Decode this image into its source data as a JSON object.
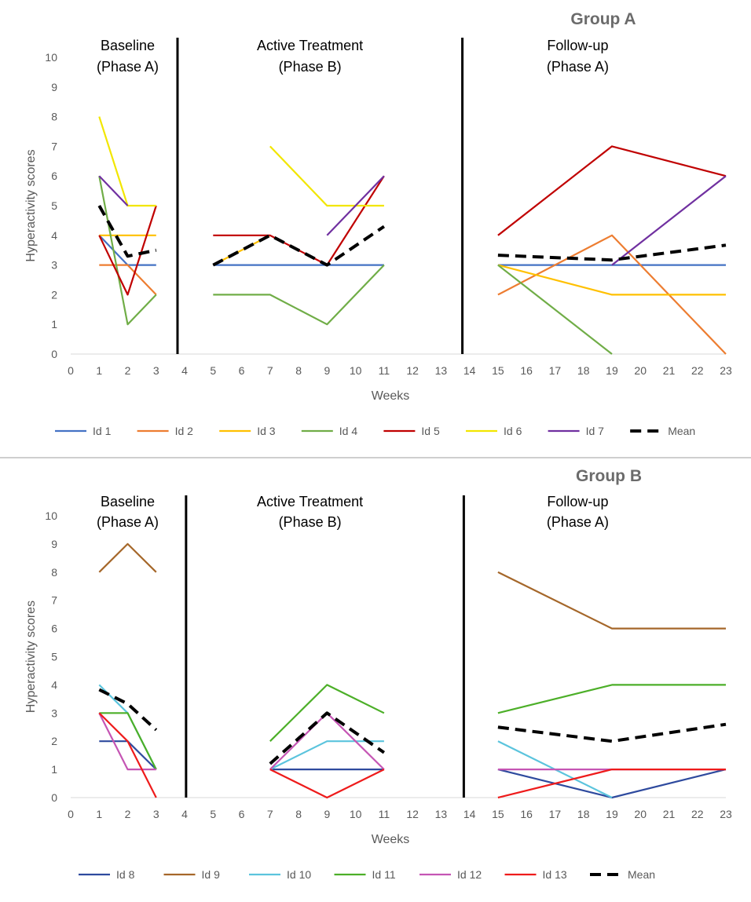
{
  "chart_data": [
    {
      "type": "line",
      "title": "Group A",
      "xlabel": "Weeks",
      "ylabel": "Hyperactivity scores",
      "xlim": [
        0,
        23
      ],
      "ylim": [
        0,
        10
      ],
      "x_ticks": [
        "0",
        "1",
        "2",
        "3",
        "4",
        "5",
        "6",
        "7",
        "8",
        "9",
        "10",
        "11",
        "12",
        "13",
        "14",
        "15",
        "16",
        "17",
        "18",
        "19",
        "20",
        "21",
        "22",
        "23"
      ],
      "y_ticks": [
        "0",
        "1",
        "2",
        "3",
        "4",
        "5",
        "6",
        "7",
        "8",
        "9",
        "10"
      ],
      "phase_dividers": [
        3.75,
        13.75
      ],
      "phases": [
        {
          "line1": "Baseline",
          "line2": "(Phase A)",
          "x": 2
        },
        {
          "line1": "Active Treatment",
          "line2": "(Phase B)",
          "x": 8.4
        },
        {
          "line1": "Follow-up",
          "line2": "(Phase A)",
          "x": 17.8
        }
      ],
      "legend": [
        "Id 1",
        "Id 2",
        "Id 3",
        "Id 4",
        "Id 5",
        "Id 6",
        "Id 7",
        "Mean"
      ],
      "series": [
        {
          "name": "Id 1",
          "color": "#4472c4",
          "dashed": false,
          "segments": [
            [
              [
                1,
                4
              ],
              [
                2,
                3
              ],
              [
                3,
                3
              ]
            ],
            [
              [
                5,
                3
              ],
              [
                7,
                3
              ],
              [
                9,
                3
              ],
              [
                11,
                3
              ]
            ],
            [
              [
                15,
                3
              ],
              [
                19,
                3
              ],
              [
                23,
                3
              ]
            ]
          ]
        },
        {
          "name": "Id 2",
          "color": "#ed7d31",
          "dashed": false,
          "segments": [
            [
              [
                1,
                3
              ],
              [
                2,
                3
              ],
              [
                3,
                2
              ]
            ],
            [
              [
                15,
                2
              ],
              [
                19,
                4
              ],
              [
                23,
                0
              ]
            ]
          ]
        },
        {
          "name": "Id 3",
          "color": "#ffc000",
          "dashed": false,
          "segments": [
            [
              [
                1,
                4
              ],
              [
                2,
                4
              ],
              [
                3,
                4
              ]
            ],
            [
              [
                5,
                3
              ],
              [
                7,
                4
              ]
            ],
            [
              [
                15,
                3
              ],
              [
                19,
                2
              ],
              [
                23,
                2
              ]
            ]
          ]
        },
        {
          "name": "Id 4",
          "color": "#70ad47",
          "dashed": false,
          "segments": [
            [
              [
                1,
                6
              ],
              [
                2,
                1
              ],
              [
                3,
                2
              ]
            ],
            [
              [
                5,
                2
              ],
              [
                7,
                2
              ],
              [
                9,
                1
              ],
              [
                11,
                3
              ]
            ],
            [
              [
                15,
                3
              ],
              [
                19,
                0
              ]
            ]
          ]
        },
        {
          "name": "Id 5",
          "color": "#c00000",
          "dashed": false,
          "segments": [
            [
              [
                1,
                4
              ],
              [
                2,
                2
              ],
              [
                3,
                5
              ]
            ],
            [
              [
                5,
                4
              ],
              [
                7,
                4
              ],
              [
                9,
                3
              ],
              [
                11,
                6
              ]
            ],
            [
              [
                15,
                4
              ],
              [
                19,
                7
              ],
              [
                23,
                6
              ]
            ]
          ]
        },
        {
          "name": "Id 6",
          "color": "#f2e600",
          "dashed": false,
          "segments": [
            [
              [
                1,
                8
              ],
              [
                2,
                5
              ],
              [
                3,
                5
              ]
            ],
            [
              [
                7,
                7
              ],
              [
                9,
                5
              ],
              [
                11,
                5
              ]
            ]
          ]
        },
        {
          "name": "Id 7",
          "color": "#7030a0",
          "dashed": false,
          "segments": [
            [
              [
                1,
                6
              ],
              [
                2,
                5
              ]
            ],
            [
              [
                9,
                4
              ],
              [
                11,
                6
              ]
            ],
            [
              [
                19,
                3
              ],
              [
                23,
                6
              ]
            ]
          ]
        },
        {
          "name": "Mean",
          "color": "#000000",
          "dashed": true,
          "segments": [
            [
              [
                1,
                5
              ],
              [
                2,
                3.3
              ],
              [
                3,
                3.5
              ]
            ],
            [
              [
                5,
                3
              ],
              [
                7,
                4
              ],
              [
                9,
                3
              ],
              [
                11,
                4.3
              ]
            ],
            [
              [
                15,
                3.33
              ],
              [
                19,
                3.17
              ],
              [
                23,
                3.67
              ]
            ]
          ]
        }
      ]
    },
    {
      "type": "line",
      "title": "Group B",
      "xlabel": "Weeks",
      "ylabel": "Hyperactivity scores",
      "xlim": [
        0,
        23
      ],
      "ylim": [
        0,
        10
      ],
      "x_ticks": [
        "0",
        "1",
        "2",
        "3",
        "4",
        "5",
        "6",
        "7",
        "8",
        "9",
        "10",
        "11",
        "12",
        "13",
        "14",
        "15",
        "16",
        "17",
        "18",
        "19",
        "20",
        "21",
        "22",
        "23"
      ],
      "y_ticks": [
        "0",
        "1",
        "2",
        "3",
        "4",
        "5",
        "6",
        "7",
        "8",
        "9",
        "10"
      ],
      "phase_dividers": [
        4.05,
        13.8
      ],
      "phases": [
        {
          "line1": "Baseline",
          "line2": "(Phase A)",
          "x": 2
        },
        {
          "line1": "Active Treatment",
          "line2": "(Phase B)",
          "x": 8.4
        },
        {
          "line1": "Follow-up",
          "line2": "(Phase A)",
          "x": 17.8
        }
      ],
      "legend": [
        "Id 8",
        "Id 9",
        "Id 10",
        "Id 11",
        "Id 12",
        "Id 13",
        "Mean"
      ],
      "series": [
        {
          "name": "Id 8",
          "color": "#2e4a9e",
          "dashed": false,
          "segments": [
            [
              [
                1,
                2
              ],
              [
                2,
                2
              ],
              [
                3,
                1
              ]
            ],
            [
              [
                7,
                1
              ],
              [
                9,
                1
              ],
              [
                11,
                1
              ]
            ],
            [
              [
                15,
                1
              ],
              [
                19,
                0
              ],
              [
                23,
                1
              ]
            ]
          ]
        },
        {
          "name": "Id 9",
          "color": "#a5672a",
          "dashed": false,
          "segments": [
            [
              [
                1,
                8
              ],
              [
                2,
                9
              ],
              [
                3,
                8
              ]
            ],
            [
              [
                15,
                8
              ],
              [
                19,
                6
              ],
              [
                23,
                6
              ]
            ]
          ]
        },
        {
          "name": "Id 10",
          "color": "#5bc4dd",
          "dashed": false,
          "segments": [
            [
              [
                1,
                4
              ],
              [
                2,
                3
              ],
              [
                3,
                1
              ]
            ],
            [
              [
                7,
                1
              ],
              [
                9,
                2
              ],
              [
                11,
                2
              ]
            ],
            [
              [
                15,
                2
              ],
              [
                19,
                0
              ]
            ]
          ]
        },
        {
          "name": "Id 11",
          "color": "#4caf28",
          "dashed": false,
          "segments": [
            [
              [
                1,
                3
              ],
              [
                2,
                3
              ],
              [
                3,
                1
              ]
            ],
            [
              [
                7,
                2
              ],
              [
                9,
                4
              ],
              [
                11,
                3
              ]
            ],
            [
              [
                15,
                3
              ],
              [
                19,
                4
              ],
              [
                23,
                4
              ]
            ]
          ]
        },
        {
          "name": "Id 12",
          "color": "#c555b4",
          "dashed": false,
          "segments": [
            [
              [
                1,
                3
              ],
              [
                2,
                1
              ],
              [
                3,
                1
              ]
            ],
            [
              [
                7,
                1
              ],
              [
                9,
                3
              ],
              [
                11,
                1
              ]
            ],
            [
              [
                15,
                1
              ],
              [
                19,
                1
              ],
              [
                23,
                1
              ]
            ]
          ]
        },
        {
          "name": "Id 13",
          "color": "#ee1b1b",
          "dashed": false,
          "segments": [
            [
              [
                1,
                3
              ],
              [
                2,
                2
              ],
              [
                3,
                0
              ]
            ],
            [
              [
                7,
                1
              ],
              [
                9,
                0
              ],
              [
                11,
                1
              ]
            ],
            [
              [
                15,
                0
              ],
              [
                19,
                1
              ],
              [
                23,
                1
              ]
            ]
          ]
        },
        {
          "name": "Mean",
          "color": "#000000",
          "dashed": true,
          "segments": [
            [
              [
                1,
                3.83
              ],
              [
                2,
                3.33
              ],
              [
                3,
                2.4
              ]
            ],
            [
              [
                7,
                1.2
              ],
              [
                9,
                3
              ],
              [
                11,
                1.6
              ]
            ],
            [
              [
                15,
                2.5
              ],
              [
                19,
                2
              ],
              [
                23,
                2.6
              ]
            ]
          ]
        }
      ]
    }
  ]
}
